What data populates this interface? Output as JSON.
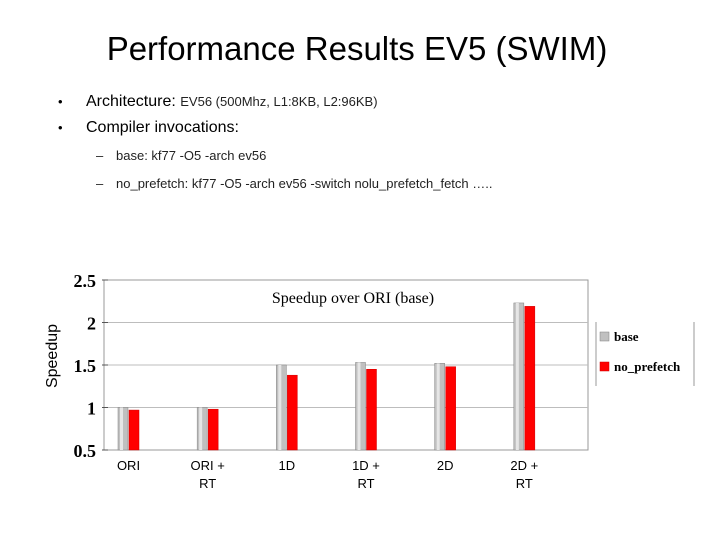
{
  "slide": {
    "title": "Performance Results EV5 (SWIM)",
    "bullets": [
      {
        "label": "Architecture:",
        "detail": "EV56 (500Mhz, L1:8KB, L2:96KB)"
      },
      {
        "label": "Compiler invocations:",
        "detail": ""
      }
    ],
    "sub_bullets": [
      "base: kf77 -O5 -arch ev56",
      "no_prefetch: kf77 -O5 -arch ev56 -switch nolu_prefetch_fetch ….."
    ]
  },
  "chart_data": {
    "type": "bar",
    "title": "Speedup over ORI (base)",
    "xlabel": "",
    "ylabel": "Speedup",
    "ylim": [
      0.5,
      2.5
    ],
    "yticks": [
      "0.5",
      "1",
      "1.5",
      "2",
      "2.5"
    ],
    "categories": [
      [
        "ORI"
      ],
      [
        "ORI +",
        "RT"
      ],
      [
        "1D"
      ],
      [
        "1D +",
        "RT"
      ],
      [
        "2D"
      ],
      [
        "2D +",
        "RT"
      ]
    ],
    "series": [
      {
        "name": "base",
        "color": "#c0c0c0",
        "values": [
          1.0,
          1.0,
          1.5,
          1.53,
          1.52,
          2.23
        ]
      },
      {
        "name": "no_prefetch",
        "color": "#ff0000",
        "values": [
          0.97,
          0.98,
          1.38,
          1.45,
          1.48,
          2.19
        ]
      }
    ],
    "grid": true,
    "legend": "right"
  }
}
